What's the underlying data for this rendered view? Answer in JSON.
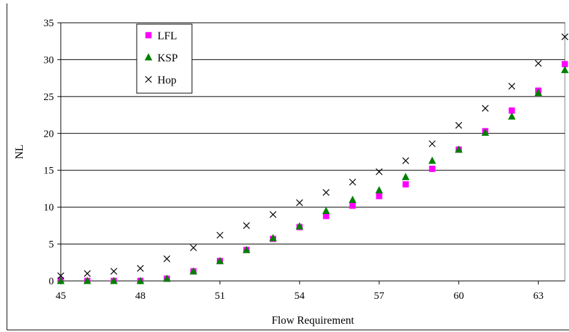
{
  "chart_data": {
    "type": "scatter",
    "title": "",
    "xlabel": "Flow Requirement",
    "ylabel": "NL",
    "xlim": [
      45,
      64
    ],
    "ylim": [
      0,
      35
    ],
    "x_ticks": [
      45,
      48,
      51,
      54,
      57,
      60,
      63
    ],
    "y_ticks": [
      0,
      5,
      10,
      15,
      20,
      25,
      30,
      35
    ],
    "grid": "horizontal",
    "legend_position": "top-left",
    "x": [
      45,
      46,
      47,
      48,
      49,
      50,
      51,
      52,
      53,
      54,
      55,
      56,
      57,
      58,
      59,
      60,
      61,
      62,
      63,
      64
    ],
    "series": [
      {
        "name": "LFL",
        "marker": "square",
        "color": "#ff00ff",
        "values": [
          0.1,
          0,
          0,
          0,
          0.3,
          1.3,
          2.7,
          4.2,
          5.7,
          7.3,
          8.8,
          10.2,
          11.5,
          13.1,
          15.2,
          17.8,
          20.3,
          23.1,
          25.8,
          29.4
        ]
      },
      {
        "name": "KSP",
        "marker": "triangle",
        "color": "#008000",
        "values": [
          0,
          0,
          0,
          0,
          0.3,
          1.3,
          2.7,
          4.2,
          5.8,
          7.4,
          9.5,
          11.0,
          12.3,
          14.1,
          16.3,
          17.8,
          20.1,
          22.3,
          25.5,
          28.6
        ]
      },
      {
        "name": "Hop",
        "marker": "x",
        "color": "#000000",
        "values": [
          0.7,
          1.0,
          1.3,
          1.7,
          3.0,
          4.5,
          6.2,
          7.5,
          9.0,
          10.6,
          12.0,
          13.4,
          14.8,
          16.3,
          18.6,
          21.1,
          23.4,
          26.4,
          29.5,
          33.1
        ]
      }
    ]
  }
}
